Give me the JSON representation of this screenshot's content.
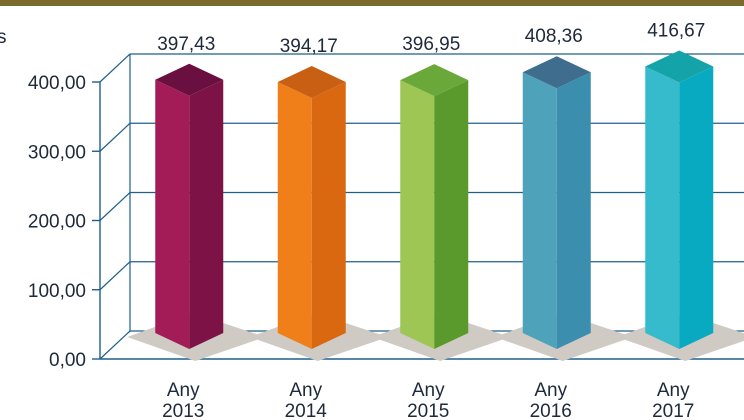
{
  "chart_data": {
    "type": "bar",
    "title": "",
    "xlabel": "",
    "ylabel": "s",
    "ylim": [
      0,
      400
    ],
    "yticks": [
      "0,00",
      "100,00",
      "200,00",
      "300,00",
      "400,00"
    ],
    "categories": [
      [
        "Any",
        "2013"
      ],
      [
        "Any",
        "2014"
      ],
      [
        "Any",
        "2015"
      ],
      [
        "Any",
        "2016"
      ],
      [
        "Any",
        "2017"
      ]
    ],
    "values": [
      397.43,
      394.17,
      396.95,
      408.36,
      416.67
    ],
    "value_labels": [
      "397,43",
      "394,17",
      "396,95",
      "408,36",
      "416,67"
    ],
    "grid": true,
    "style": "3d-column",
    "bar_colors": [
      {
        "front": "#a31c58",
        "side": "#7d1247",
        "top": "#6a1040"
      },
      {
        "front": "#f07f1a",
        "side": "#d96810",
        "top": "#c85f12"
      },
      {
        "front": "#9dc654",
        "side": "#5a9a2c",
        "top": "#6aa83a"
      },
      {
        "front": "#4ea3bb",
        "side": "#3c8eae",
        "top": "#3f6d8e"
      },
      {
        "front": "#36bbcc",
        "side": "#08aac2",
        "top": "#13a3a8"
      }
    ],
    "colors": {
      "top_rule": "#7b6a2c",
      "grid": "#1f5f8b",
      "axis": "#1f5f8b",
      "shadow": "#cfcbc4",
      "text": "#1e2a3a"
    }
  }
}
